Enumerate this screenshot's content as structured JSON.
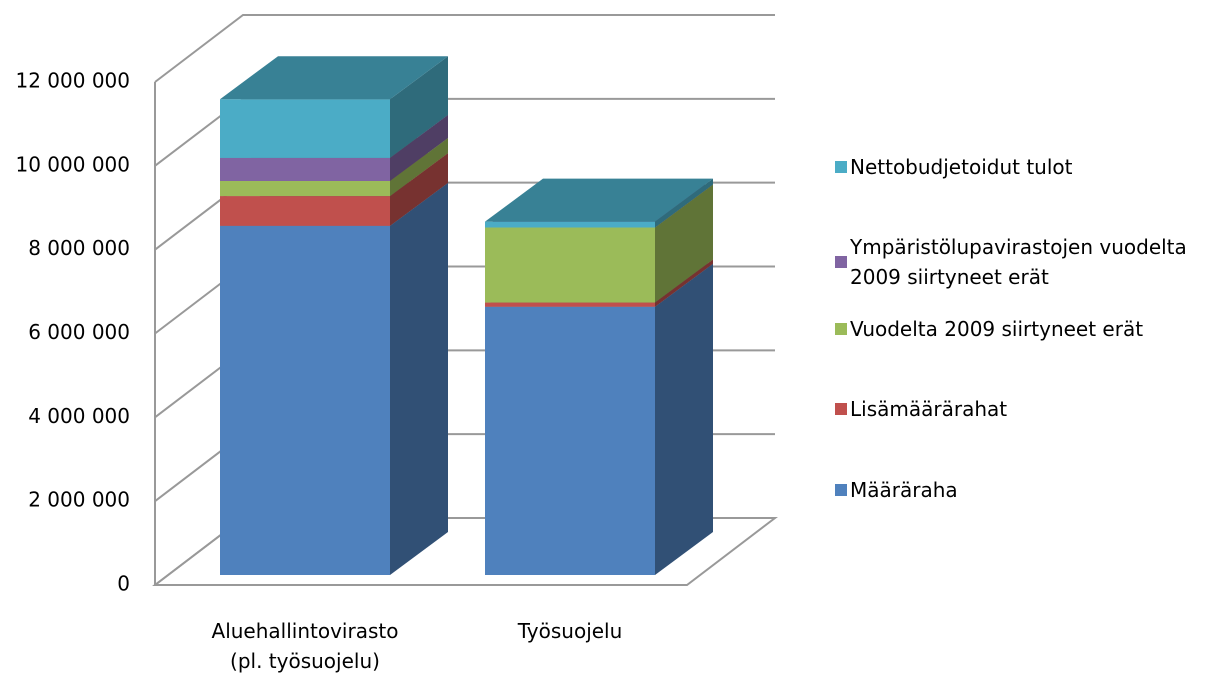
{
  "chart_data": {
    "type": "bar3d_stacked",
    "categories": [
      "Aluehallintovirasto (pl. työsuojelu)",
      "Työsuojelu"
    ],
    "series": [
      {
        "name": "Määräraha",
        "color": "#4f81bd",
        "values": [
          8330000,
          6400000
        ]
      },
      {
        "name": "Lisämäärärahat",
        "color": "#c0504d",
        "values": [
          710000,
          100000
        ]
      },
      {
        "name": "Vuodelta 2009 siirtyneet erät",
        "color": "#9bbb59",
        "values": [
          360000,
          1790000
        ]
      },
      {
        "name": "Ympäristölupavirastojen vuodelta 2009 siirtyneet erät",
        "color": "#8064a2",
        "values": [
          550000,
          0
        ]
      },
      {
        "name": "Nettobudjetoidut tulot",
        "color": "#4bacc6",
        "values": [
          1400000,
          140000
        ]
      }
    ],
    "ylim": [
      0,
      12000000
    ],
    "yticks": [
      0,
      {
        "value": 2000000,
        "label": "2 000 000"
      },
      {
        "value": 4000000,
        "label": "4 000 000"
      },
      {
        "value": 6000000,
        "label": "6 000 000"
      },
      {
        "value": 8000000,
        "label": "8 000 000"
      },
      {
        "value": 10000000,
        "label": "10 000 000"
      },
      {
        "value": 12000000,
        "label": "12 000 000"
      }
    ],
    "grid": true,
    "legend": "right"
  }
}
